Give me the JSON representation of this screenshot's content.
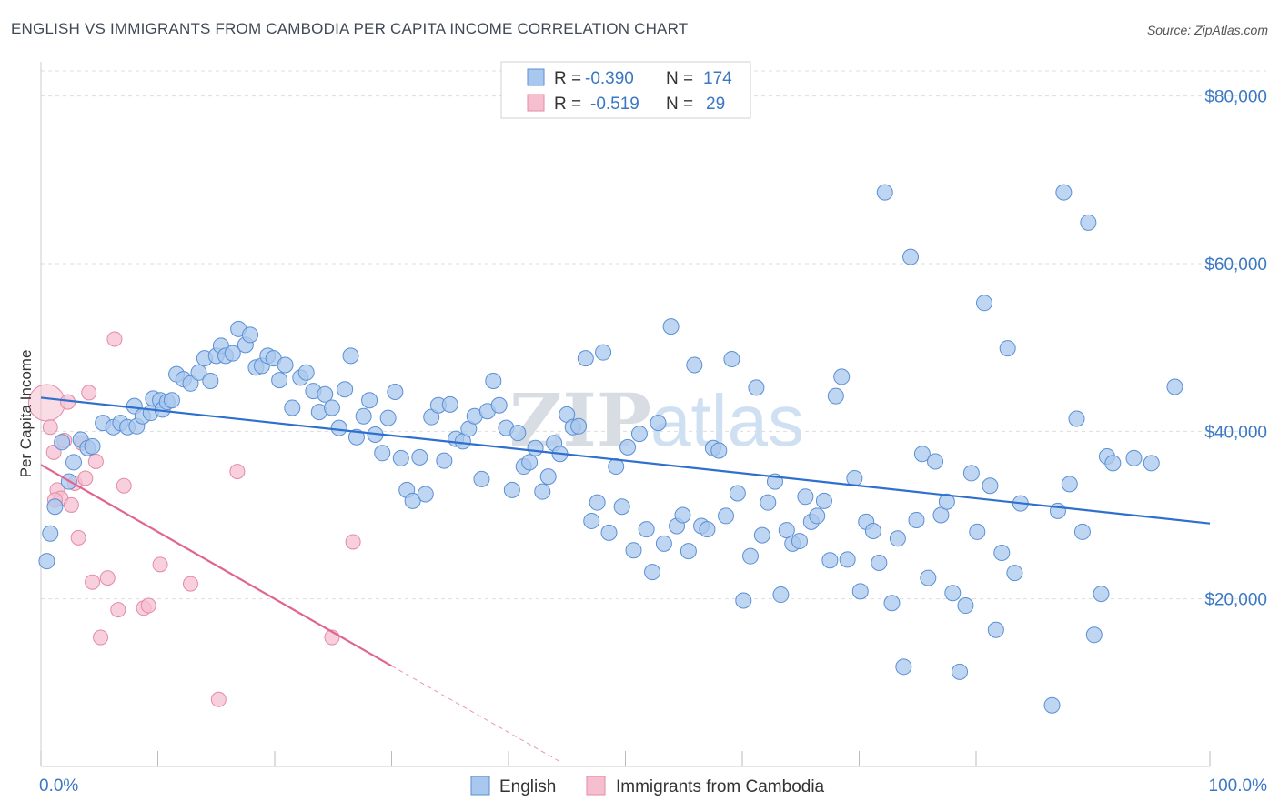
{
  "header": {
    "title": "ENGLISH VS IMMIGRANTS FROM CAMBODIA PER CAPITA INCOME CORRELATION CHART",
    "source": "Source: ZipAtlas.com"
  },
  "watermark": {
    "zip": "ZIP",
    "atlas": "atlas"
  },
  "colors": {
    "english_fill": "#a9c8ee",
    "english_stroke": "#5b8fd4",
    "english_line": "#2f6fcd",
    "cambodia_fill": "#f6bfd0",
    "cambodia_stroke": "#e58aa6",
    "cambodia_line": "#e0668f",
    "tick_text": "#3b78c4",
    "grid": "#dddddd"
  },
  "legend": {
    "r_label": "R =",
    "n_label": "N =",
    "rows": [
      {
        "r": "-0.390",
        "n": "174",
        "swatch": "english"
      },
      {
        "r": "-0.519",
        "n": "29",
        "swatch": "cambodia"
      }
    ]
  },
  "bottom_legend": {
    "english": "English",
    "cambodia": "Immigrants from Cambodia"
  },
  "chart_data": {
    "type": "scatter",
    "xlabel": "",
    "ylabel": "Per Capita Income",
    "x_tick_labels": [
      "0.0%",
      "100.0%"
    ],
    "y_tick_labels": [
      "$20,000",
      "$40,000",
      "$60,000",
      "$80,000"
    ],
    "y_ticks": [
      20000,
      40000,
      60000,
      80000
    ],
    "xlim": [
      0,
      100
    ],
    "ylim": [
      0,
      83000
    ],
    "grid": "horizontal-dashed",
    "legend_position": "top-center",
    "series": [
      {
        "name": "English",
        "r": -0.39,
        "n": 174,
        "trend": {
          "x": [
            0,
            100
          ],
          "y": [
            44000,
            29000
          ]
        },
        "points": [
          [
            0.5,
            24500
          ],
          [
            0.8,
            27800
          ],
          [
            1.2,
            31000
          ],
          [
            1.8,
            38700
          ],
          [
            2.4,
            34000
          ],
          [
            2.8,
            36300
          ],
          [
            3.4,
            39000
          ],
          [
            4.0,
            38000
          ],
          [
            4.4,
            38200
          ],
          [
            5.3,
            41000
          ],
          [
            6.2,
            40500
          ],
          [
            6.8,
            41000
          ],
          [
            7.4,
            40500
          ],
          [
            8.0,
            43000
          ],
          [
            8.2,
            40600
          ],
          [
            8.7,
            41800
          ],
          [
            9.4,
            42200
          ],
          [
            9.6,
            43900
          ],
          [
            10.2,
            43700
          ],
          [
            10.4,
            42600
          ],
          [
            10.8,
            43500
          ],
          [
            11.2,
            43700
          ],
          [
            11.6,
            46800
          ],
          [
            12.2,
            46200
          ],
          [
            12.8,
            45700
          ],
          [
            13.5,
            47000
          ],
          [
            14.0,
            48700
          ],
          [
            14.5,
            46000
          ],
          [
            15.0,
            49000
          ],
          [
            15.4,
            50200
          ],
          [
            15.8,
            49000
          ],
          [
            16.4,
            49300
          ],
          [
            16.9,
            52200
          ],
          [
            17.5,
            50300
          ],
          [
            17.9,
            51500
          ],
          [
            18.4,
            47600
          ],
          [
            18.9,
            47800
          ],
          [
            19.4,
            49000
          ],
          [
            19.9,
            48700
          ],
          [
            20.4,
            46100
          ],
          [
            20.9,
            47900
          ],
          [
            21.5,
            42800
          ],
          [
            22.2,
            46400
          ],
          [
            22.7,
            47000
          ],
          [
            23.3,
            44800
          ],
          [
            23.8,
            42300
          ],
          [
            24.3,
            44400
          ],
          [
            24.9,
            42800
          ],
          [
            25.5,
            40400
          ],
          [
            26.0,
            45000
          ],
          [
            26.5,
            49000
          ],
          [
            27.0,
            39300
          ],
          [
            27.6,
            41800
          ],
          [
            28.1,
            43700
          ],
          [
            28.6,
            39600
          ],
          [
            29.2,
            37400
          ],
          [
            29.7,
            41600
          ],
          [
            30.3,
            44700
          ],
          [
            30.8,
            36800
          ],
          [
            31.3,
            33000
          ],
          [
            31.8,
            31700
          ],
          [
            32.4,
            36900
          ],
          [
            32.9,
            32500
          ],
          [
            33.4,
            41700
          ],
          [
            34.0,
            43100
          ],
          [
            34.5,
            36500
          ],
          [
            35.0,
            43200
          ],
          [
            35.5,
            39100
          ],
          [
            36.1,
            38800
          ],
          [
            36.6,
            40300
          ],
          [
            37.1,
            41800
          ],
          [
            37.7,
            34300
          ],
          [
            38.2,
            42400
          ],
          [
            38.7,
            46000
          ],
          [
            39.2,
            43100
          ],
          [
            39.8,
            40400
          ],
          [
            40.3,
            33000
          ],
          [
            40.8,
            39800
          ],
          [
            41.3,
            35800
          ],
          [
            41.8,
            36300
          ],
          [
            42.3,
            38000
          ],
          [
            42.9,
            32800
          ],
          [
            43.4,
            34600
          ],
          [
            43.9,
            38600
          ],
          [
            44.4,
            37300
          ],
          [
            45.0,
            42000
          ],
          [
            45.5,
            40500
          ],
          [
            46.0,
            40600
          ],
          [
            46.6,
            48700
          ],
          [
            47.1,
            29300
          ],
          [
            47.6,
            31500
          ],
          [
            48.1,
            49400
          ],
          [
            48.6,
            27900
          ],
          [
            49.2,
            35800
          ],
          [
            49.7,
            31000
          ],
          [
            50.2,
            38100
          ],
          [
            50.7,
            25800
          ],
          [
            51.2,
            39700
          ],
          [
            51.8,
            28300
          ],
          [
            52.3,
            23200
          ],
          [
            52.8,
            41000
          ],
          [
            53.3,
            26600
          ],
          [
            53.9,
            52500
          ],
          [
            54.4,
            28700
          ],
          [
            54.9,
            30000
          ],
          [
            55.4,
            25700
          ],
          [
            55.9,
            47900
          ],
          [
            56.5,
            28700
          ],
          [
            57.0,
            28300
          ],
          [
            57.5,
            38000
          ],
          [
            58.0,
            37700
          ],
          [
            58.6,
            29900
          ],
          [
            59.1,
            48600
          ],
          [
            59.6,
            32600
          ],
          [
            60.1,
            19800
          ],
          [
            60.7,
            25100
          ],
          [
            61.2,
            45200
          ],
          [
            61.7,
            27600
          ],
          [
            62.2,
            31500
          ],
          [
            62.8,
            34000
          ],
          [
            63.3,
            20500
          ],
          [
            63.8,
            28200
          ],
          [
            64.3,
            26600
          ],
          [
            64.9,
            26900
          ],
          [
            65.4,
            32200
          ],
          [
            65.9,
            29200
          ],
          [
            66.4,
            29900
          ],
          [
            67.0,
            31700
          ],
          [
            67.5,
            24600
          ],
          [
            68.0,
            44200
          ],
          [
            68.5,
            46500
          ],
          [
            69.0,
            24700
          ],
          [
            69.6,
            34400
          ],
          [
            70.1,
            20900
          ],
          [
            70.6,
            29200
          ],
          [
            71.2,
            28100
          ],
          [
            71.7,
            24300
          ],
          [
            72.2,
            68500
          ],
          [
            72.8,
            19500
          ],
          [
            73.3,
            27200
          ],
          [
            73.8,
            11900
          ],
          [
            74.4,
            60800
          ],
          [
            74.9,
            29400
          ],
          [
            75.4,
            37300
          ],
          [
            75.9,
            22500
          ],
          [
            76.5,
            36400
          ],
          [
            77.0,
            30000
          ],
          [
            77.5,
            31600
          ],
          [
            78.0,
            20700
          ],
          [
            78.6,
            11300
          ],
          [
            79.1,
            19200
          ],
          [
            79.6,
            35000
          ],
          [
            80.1,
            28000
          ],
          [
            80.7,
            55300
          ],
          [
            81.2,
            33500
          ],
          [
            81.7,
            16300
          ],
          [
            82.2,
            25500
          ],
          [
            82.7,
            49900
          ],
          [
            83.3,
            23100
          ],
          [
            83.8,
            31400
          ],
          [
            86.5,
            7300
          ],
          [
            87.0,
            30500
          ],
          [
            87.5,
            68500
          ],
          [
            88.0,
            33700
          ],
          [
            88.6,
            41500
          ],
          [
            89.1,
            28000
          ],
          [
            89.6,
            64900
          ],
          [
            90.1,
            15700
          ],
          [
            90.7,
            20600
          ],
          [
            91.2,
            37000
          ],
          [
            91.7,
            36200
          ],
          [
            97.0,
            45300
          ],
          [
            93.5,
            36800
          ],
          [
            95.0,
            36200
          ]
        ]
      },
      {
        "name": "Immigrants from Cambodia",
        "r": -0.519,
        "n": 29,
        "trend": {
          "x": [
            0,
            30
          ],
          "y": [
            36000,
            12000
          ]
        },
        "trend_dashed": {
          "x": [
            30,
            44.5
          ],
          "y": [
            12000,
            500
          ]
        },
        "points": [
          [
            0.5,
            43400
          ],
          [
            0.8,
            40500
          ],
          [
            1.1,
            37500
          ],
          [
            1.4,
            33000
          ],
          [
            1.7,
            32000
          ],
          [
            2.0,
            38900
          ],
          [
            2.3,
            43500
          ],
          [
            2.6,
            31200
          ],
          [
            2.9,
            33800
          ],
          [
            3.2,
            27300
          ],
          [
            3.5,
            38600
          ],
          [
            3.8,
            34400
          ],
          [
            4.1,
            44600
          ],
          [
            4.4,
            22000
          ],
          [
            4.7,
            36400
          ],
          [
            5.1,
            15400
          ],
          [
            5.7,
            22500
          ],
          [
            6.3,
            51000
          ],
          [
            6.6,
            18700
          ],
          [
            7.1,
            33500
          ],
          [
            8.8,
            18900
          ],
          [
            9.2,
            19200
          ],
          [
            10.2,
            24100
          ],
          [
            12.8,
            21800
          ],
          [
            15.2,
            8000
          ],
          [
            16.8,
            35200
          ],
          [
            24.9,
            15400
          ],
          [
            26.7,
            26800
          ],
          [
            1.2,
            31800
          ]
        ]
      }
    ]
  }
}
